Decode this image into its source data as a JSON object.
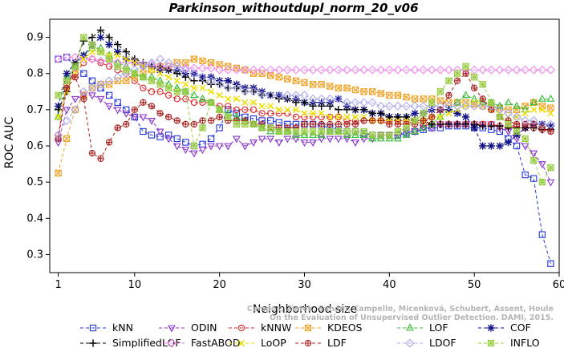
{
  "chart_data": {
    "type": "line",
    "title": "Parkinson_withoutdupl_norm_20_v06",
    "xlabel": "Neighborhood size",
    "ylabel": "ROC AUC",
    "xlim": [
      0,
      60
    ],
    "ylim": [
      0.25,
      0.95
    ],
    "xticks": [
      1,
      10,
      20,
      30,
      40,
      50,
      60
    ],
    "yticks": [
      0.3,
      0.4,
      0.5,
      0.6,
      0.7,
      0.8,
      0.9
    ],
    "x": [
      1,
      2,
      3,
      4,
      5,
      6,
      7,
      8,
      9,
      10,
      11,
      12,
      13,
      14,
      15,
      16,
      17,
      18,
      19,
      20,
      21,
      22,
      23,
      24,
      25,
      26,
      27,
      28,
      29,
      30,
      31,
      32,
      33,
      34,
      35,
      36,
      37,
      38,
      39,
      40,
      41,
      42,
      43,
      44,
      45,
      46,
      47,
      48,
      49,
      50,
      51,
      52,
      53,
      54,
      55,
      56,
      57,
      58,
      59
    ],
    "legend_position": "bottom",
    "grid": false,
    "watermark": "Campos, Zimek, Sander, Campello, Micenková, Schubert, Assent, Houle\nOn the Evaluation of Unsupervised Outlier Detection. DAMI, 2015.",
    "series": [
      {
        "name": "kNN",
        "color": "#2233dd",
        "marker": "square",
        "values": [
          0.84,
          0.845,
          0.82,
          0.8,
          0.78,
          0.76,
          0.74,
          0.72,
          0.7,
          0.68,
          0.64,
          0.63,
          0.625,
          0.63,
          0.62,
          0.61,
          0.6,
          0.605,
          0.62,
          0.65,
          0.7,
          0.69,
          0.68,
          0.675,
          0.67,
          0.67,
          0.665,
          0.66,
          0.66,
          0.66,
          0.66,
          0.655,
          0.65,
          0.645,
          0.64,
          0.64,
          0.635,
          0.63,
          0.63,
          0.63,
          0.63,
          0.635,
          0.64,
          0.645,
          0.65,
          0.65,
          0.655,
          0.655,
          0.655,
          0.65,
          0.65,
          0.645,
          0.64,
          0.62,
          0.6,
          0.52,
          0.51,
          0.355,
          0.275
        ]
      },
      {
        "name": "ODIN",
        "color": "#8833cc",
        "marker": "triangle-down",
        "values": [
          0.61,
          0.7,
          0.73,
          0.74,
          0.74,
          0.73,
          0.71,
          0.7,
          0.69,
          0.68,
          0.68,
          0.67,
          0.64,
          0.62,
          0.6,
          0.59,
          0.58,
          0.59,
          0.6,
          0.6,
          0.6,
          0.62,
          0.6,
          0.61,
          0.62,
          0.62,
          0.61,
          0.62,
          0.62,
          0.61,
          0.61,
          0.62,
          0.62,
          0.62,
          0.62,
          0.61,
          0.62,
          0.62,
          0.63,
          0.63,
          0.63,
          0.64,
          0.64,
          0.65,
          0.65,
          0.66,
          0.66,
          0.66,
          0.66,
          0.66,
          0.66,
          0.66,
          0.65,
          0.64,
          0.62,
          0.6,
          0.58,
          0.55,
          0.5
        ]
      },
      {
        "name": "kNNW",
        "color": "#dd2222",
        "marker": "circle",
        "values": [
          0.63,
          0.77,
          0.8,
          0.83,
          0.84,
          0.83,
          0.82,
          0.81,
          0.8,
          0.78,
          0.76,
          0.75,
          0.75,
          0.74,
          0.73,
          0.73,
          0.72,
          0.72,
          0.72,
          0.71,
          0.71,
          0.7,
          0.7,
          0.7,
          0.69,
          0.69,
          0.69,
          0.69,
          0.68,
          0.68,
          0.68,
          0.68,
          0.68,
          0.68,
          0.67,
          0.67,
          0.67,
          0.67,
          0.67,
          0.67,
          0.67,
          0.67,
          0.66,
          0.66,
          0.66,
          0.66,
          0.66,
          0.66,
          0.66,
          0.66,
          0.66,
          0.66,
          0.655,
          0.655,
          0.655,
          0.65,
          0.65,
          0.645,
          0.64
        ]
      },
      {
        "name": "KDEOS",
        "color": "#f0a020",
        "marker": "square-x",
        "values": [
          0.525,
          0.62,
          0.7,
          0.74,
          0.76,
          0.77,
          0.77,
          0.78,
          0.78,
          0.79,
          0.8,
          0.81,
          0.82,
          0.82,
          0.83,
          0.83,
          0.84,
          0.835,
          0.83,
          0.825,
          0.82,
          0.815,
          0.81,
          0.8,
          0.8,
          0.795,
          0.79,
          0.785,
          0.78,
          0.775,
          0.77,
          0.77,
          0.765,
          0.76,
          0.76,
          0.755,
          0.75,
          0.75,
          0.745,
          0.74,
          0.74,
          0.735,
          0.73,
          0.73,
          0.73,
          0.725,
          0.72,
          0.72,
          0.72,
          0.715,
          0.71,
          0.71,
          0.705,
          0.7,
          0.7,
          0.71,
          0.72,
          0.71,
          0.705
        ]
      },
      {
        "name": "LOF",
        "color": "#33bb33",
        "marker": "triangle-up",
        "values": [
          0.68,
          0.79,
          0.82,
          0.85,
          0.87,
          0.87,
          0.85,
          0.83,
          0.82,
          0.8,
          0.79,
          0.79,
          0.78,
          0.77,
          0.76,
          0.75,
          0.74,
          0.73,
          0.72,
          0.7,
          0.69,
          0.68,
          0.67,
          0.66,
          0.65,
          0.64,
          0.64,
          0.64,
          0.63,
          0.63,
          0.63,
          0.63,
          0.64,
          0.64,
          0.63,
          0.63,
          0.63,
          0.62,
          0.62,
          0.62,
          0.62,
          0.63,
          0.64,
          0.65,
          0.66,
          0.68,
          0.7,
          0.72,
          0.74,
          0.73,
          0.72,
          0.72,
          0.71,
          0.72,
          0.71,
          0.7,
          0.72,
          0.73,
          0.73
        ]
      },
      {
        "name": "COF",
        "color": "#111188",
        "marker": "asterisk",
        "values": [
          0.71,
          0.8,
          0.83,
          0.85,
          0.88,
          0.9,
          0.88,
          0.86,
          0.84,
          0.83,
          0.82,
          0.82,
          0.81,
          0.81,
          0.81,
          0.8,
          0.8,
          0.79,
          0.79,
          0.78,
          0.78,
          0.77,
          0.76,
          0.76,
          0.75,
          0.74,
          0.74,
          0.73,
          0.73,
          0.72,
          0.72,
          0.72,
          0.72,
          0.73,
          0.71,
          0.7,
          0.7,
          0.69,
          0.69,
          0.68,
          0.68,
          0.68,
          0.69,
          0.69,
          0.7,
          0.7,
          0.7,
          0.69,
          0.68,
          0.65,
          0.6,
          0.6,
          0.6,
          0.61,
          0.63,
          0.65,
          0.66,
          0.66,
          0.655
        ]
      },
      {
        "name": "SimplifiedLOF",
        "color": "#000000",
        "marker": "plus",
        "values": [
          0.7,
          0.75,
          0.83,
          0.89,
          0.9,
          0.92,
          0.9,
          0.88,
          0.86,
          0.84,
          0.83,
          0.82,
          0.82,
          0.81,
          0.8,
          0.79,
          0.78,
          0.78,
          0.77,
          0.77,
          0.76,
          0.76,
          0.75,
          0.75,
          0.74,
          0.74,
          0.73,
          0.73,
          0.72,
          0.72,
          0.71,
          0.71,
          0.71,
          0.7,
          0.7,
          0.7,
          0.7,
          0.69,
          0.69,
          0.68,
          0.68,
          0.68,
          0.67,
          0.67,
          0.66,
          0.66,
          0.66,
          0.66,
          0.66,
          0.66,
          0.655,
          0.655,
          0.655,
          0.65,
          0.65,
          0.65,
          0.65,
          0.645,
          0.645
        ]
      },
      {
        "name": "FastABOD",
        "color": "#ee88ee",
        "marker": "diamond",
        "values": [
          0.84,
          0.845,
          0.845,
          0.84,
          0.84,
          0.835,
          0.835,
          0.83,
          0.83,
          0.83,
          0.825,
          0.825,
          0.82,
          0.82,
          0.82,
          0.815,
          0.815,
          0.815,
          0.815,
          0.81,
          0.81,
          0.81,
          0.81,
          0.81,
          0.81,
          0.81,
          0.81,
          0.81,
          0.81,
          0.81,
          0.81,
          0.81,
          0.81,
          0.81,
          0.81,
          0.81,
          0.81,
          0.81,
          0.81,
          0.81,
          0.81,
          0.81,
          0.81,
          0.81,
          0.81,
          0.81,
          0.81,
          0.81,
          0.81,
          0.81,
          0.81,
          0.81,
          0.81,
          0.81,
          0.81,
          0.81,
          0.81,
          0.81,
          0.81
        ]
      },
      {
        "name": "LoOP",
        "color": "#eedd00",
        "marker": "x",
        "values": [
          0.68,
          0.75,
          0.8,
          0.84,
          0.86,
          0.86,
          0.85,
          0.85,
          0.84,
          0.83,
          0.82,
          0.81,
          0.8,
          0.79,
          0.78,
          0.77,
          0.76,
          0.76,
          0.75,
          0.74,
          0.73,
          0.73,
          0.72,
          0.72,
          0.71,
          0.71,
          0.7,
          0.7,
          0.7,
          0.69,
          0.69,
          0.69,
          0.68,
          0.68,
          0.68,
          0.68,
          0.68,
          0.67,
          0.67,
          0.67,
          0.67,
          0.67,
          0.67,
          0.67,
          0.68,
          0.68,
          0.69,
          0.7,
          0.71,
          0.72,
          0.72,
          0.7,
          0.69,
          0.68,
          0.68,
          0.69,
          0.7,
          0.7,
          0.69
        ]
      },
      {
        "name": "LDF",
        "color": "#aa2222",
        "marker": "circle-plus",
        "values": [
          0.62,
          0.76,
          0.79,
          0.73,
          0.58,
          0.565,
          0.61,
          0.65,
          0.66,
          0.7,
          0.72,
          0.71,
          0.69,
          0.68,
          0.67,
          0.66,
          0.66,
          0.67,
          0.67,
          0.68,
          0.67,
          0.67,
          0.67,
          0.66,
          0.66,
          0.65,
          0.65,
          0.65,
          0.65,
          0.66,
          0.66,
          0.66,
          0.66,
          0.66,
          0.66,
          0.66,
          0.67,
          0.67,
          0.67,
          0.66,
          0.66,
          0.66,
          0.66,
          0.67,
          0.68,
          0.7,
          0.74,
          0.78,
          0.8,
          0.76,
          0.73,
          0.7,
          0.68,
          0.67,
          0.66,
          0.66,
          0.66,
          0.65,
          0.64
        ]
      },
      {
        "name": "LDOF",
        "color": "#aaaaee",
        "marker": "diamond-open",
        "values": [
          0.63,
          0.67,
          0.7,
          0.75,
          0.76,
          0.77,
          0.78,
          0.79,
          0.8,
          0.81,
          0.82,
          0.83,
          0.84,
          0.83,
          0.82,
          0.81,
          0.8,
          0.79,
          0.78,
          0.77,
          0.76,
          0.76,
          0.75,
          0.75,
          0.74,
          0.74,
          0.74,
          0.74,
          0.74,
          0.74,
          0.73,
          0.73,
          0.73,
          0.73,
          0.72,
          0.72,
          0.72,
          0.72,
          0.71,
          0.71,
          0.71,
          0.71,
          0.71,
          0.71,
          0.71,
          0.71,
          0.71,
          0.71,
          0.71,
          0.71,
          0.71,
          0.71,
          0.7,
          0.69,
          0.68,
          0.67,
          0.67,
          0.66,
          0.66
        ]
      },
      {
        "name": "INFLO",
        "color": "#99cc44",
        "marker": "square-star",
        "values": [
          0.74,
          0.78,
          0.82,
          0.9,
          0.88,
          0.86,
          0.84,
          0.82,
          0.81,
          0.8,
          0.79,
          0.78,
          0.77,
          0.76,
          0.75,
          0.75,
          0.6,
          0.65,
          0.72,
          0.7,
          0.68,
          0.66,
          0.66,
          0.66,
          0.65,
          0.65,
          0.64,
          0.64,
          0.64,
          0.64,
          0.64,
          0.64,
          0.64,
          0.64,
          0.64,
          0.64,
          0.64,
          0.63,
          0.63,
          0.63,
          0.64,
          0.65,
          0.67,
          0.69,
          0.72,
          0.75,
          0.78,
          0.8,
          0.82,
          0.79,
          0.77,
          0.72,
          0.68,
          0.66,
          0.64,
          0.62,
          0.56,
          0.5,
          0.54
        ]
      }
    ]
  }
}
